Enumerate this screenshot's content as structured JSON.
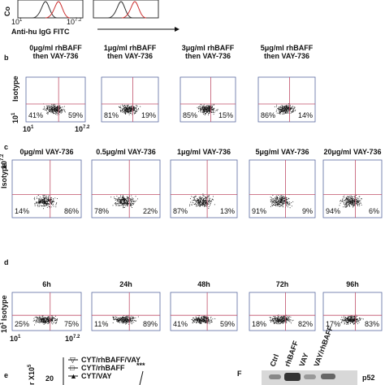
{
  "top": {
    "y_axis_label": "Co",
    "x_ticks": [
      {
        "base": "10",
        "exp": "1"
      },
      {
        "base": "10",
        "exp": "7.2"
      }
    ],
    "x_axis_label": "Anti-hu  IgG FITC"
  },
  "panels": [
    {
      "label": "b",
      "y_axis_label": "Isotype",
      "y_ticks": [
        {
          "base": "10",
          "exp": "1"
        }
      ],
      "x_ticks": [
        {
          "base": "10",
          "exp": "1"
        },
        {
          "base": "10",
          "exp": "7.2"
        }
      ],
      "plots": [
        {
          "title": [
            "0μg/ml rhBAFF",
            "then VAY-736"
          ],
          "left": "41%",
          "right": "59%"
        },
        {
          "title": [
            "1μg/ml rhBAFF",
            "then VAY-736"
          ],
          "left": "81%",
          "right": "19%"
        },
        {
          "title": [
            "3μg/ml rhBAFF",
            "then VAY-736"
          ],
          "left": "85%",
          "right": "15%"
        },
        {
          "title": [
            "5μg/ml rhBAFF",
            "then VAY-736"
          ],
          "left": "86%",
          "right": "14%"
        }
      ]
    },
    {
      "label": "c",
      "y_axis_label": "Isotype",
      "y_ticks": [
        {
          "base": "10",
          "exp": "7.2"
        }
      ],
      "x_ticks": [],
      "plots": [
        {
          "title": [
            "0μg/ml VAY-736"
          ],
          "left": "14%",
          "right": "86%"
        },
        {
          "title": [
            "0.5μg/ml VAY-736"
          ],
          "left": "78%",
          "right": "22%"
        },
        {
          "title": [
            "1μg/ml VAY-736"
          ],
          "left": "87%",
          "right": "13%"
        },
        {
          "title": [
            "5μg/ml VAY-736"
          ],
          "left": "91%",
          "right": "9%"
        },
        {
          "title": [
            "20μg/ml VAY-736"
          ],
          "left": "94%",
          "right": "6%"
        }
      ]
    },
    {
      "label": "d",
      "y_axis_label": "Isotype",
      "y_ticks": [
        {
          "base": "10",
          "exp": "1"
        }
      ],
      "x_ticks": [
        {
          "base": "10",
          "exp": "1"
        },
        {
          "base": "10",
          "exp": "7.2"
        }
      ],
      "plots": [
        {
          "title": [
            "6h"
          ],
          "left": "25%",
          "right": "75%"
        },
        {
          "title": [
            "24h"
          ],
          "left": "11%",
          "right": "89%"
        },
        {
          "title": [
            "48h"
          ],
          "left": "41%",
          "right": "59%"
        },
        {
          "title": [
            "72h"
          ],
          "left": "18%",
          "right": "82%"
        },
        {
          "title": [
            "96h"
          ],
          "left": "17%",
          "right": "83%"
        }
      ]
    }
  ],
  "panel_e": {
    "label": "e",
    "y_axis_label": {
      "base": "r X10",
      "exp": "5"
    },
    "legend": [
      "CYT/rhBAFF/VAY",
      "CYT/rhBAFF",
      "CYT/VAY"
    ],
    "y_tick": "20",
    "significance": "***"
  },
  "panel_f": {
    "label": "F",
    "lanes": [
      "Ctrl",
      "rhBAFF",
      "VAY",
      "VAY/rhBAFF"
    ],
    "band_label": "p52"
  }
}
